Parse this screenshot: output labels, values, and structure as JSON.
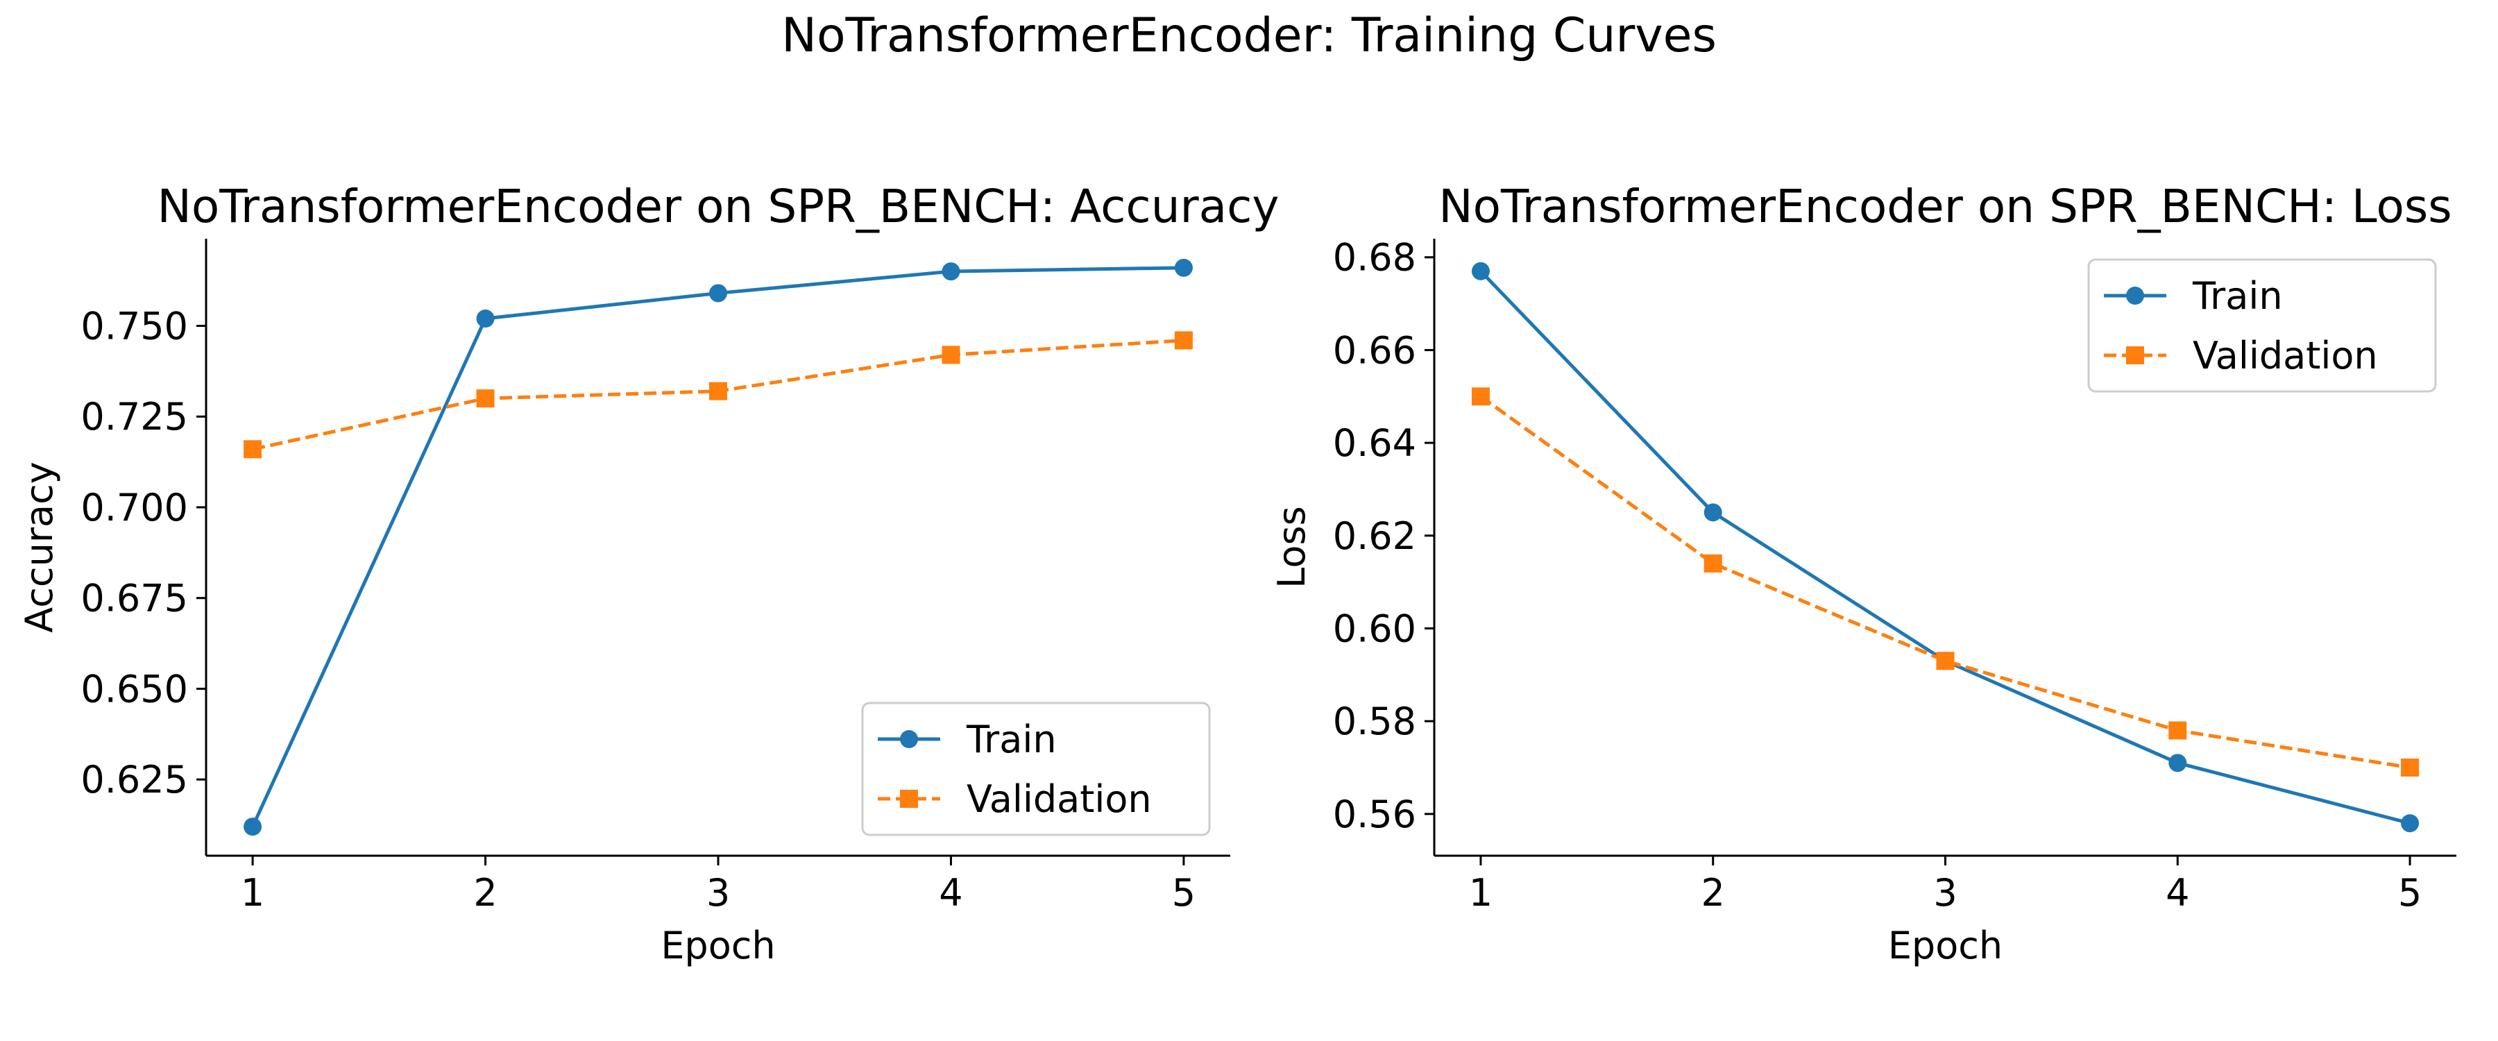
{
  "figure_title": "NoTransformerEncoder: Training Curves",
  "colors": {
    "train": "#1f77b4",
    "validation": "#ff7f0e",
    "axis": "#000000"
  },
  "chart_data": [
    {
      "type": "line",
      "title": "NoTransformerEncoder on SPR_BENCH: Accuracy",
      "xlabel": "Epoch",
      "ylabel": "Accuracy",
      "x": [
        1,
        2,
        3,
        4,
        5
      ],
      "xticks": [
        1,
        2,
        3,
        4,
        5
      ],
      "yticks": [
        0.625,
        0.65,
        0.675,
        0.7,
        0.725,
        0.75
      ],
      "ytick_decimals": 3,
      "xlim": [
        0.8,
        5.2
      ],
      "ylim": [
        0.604,
        0.774
      ],
      "grid": false,
      "legend_position": "lower right",
      "series": [
        {
          "name": "Train",
          "values": [
            0.612,
            0.752,
            0.759,
            0.765,
            0.766
          ],
          "marker": "circle",
          "dash": "solid",
          "color_key": "train"
        },
        {
          "name": "Validation",
          "values": [
            0.716,
            0.73,
            0.732,
            0.742,
            0.746
          ],
          "marker": "square",
          "dash": "dashed",
          "color_key": "validation"
        }
      ]
    },
    {
      "type": "line",
      "title": "NoTransformerEncoder on SPR_BENCH: Loss",
      "xlabel": "Epoch",
      "ylabel": "Loss",
      "x": [
        1,
        2,
        3,
        4,
        5
      ],
      "xticks": [
        1,
        2,
        3,
        4,
        5
      ],
      "yticks": [
        0.56,
        0.58,
        0.6,
        0.62,
        0.64,
        0.66,
        0.68
      ],
      "ytick_decimals": 2,
      "xlim": [
        0.8,
        5.2
      ],
      "ylim": [
        0.551,
        0.684
      ],
      "grid": false,
      "legend_position": "upper right",
      "series": [
        {
          "name": "Train",
          "values": [
            0.677,
            0.625,
            0.593,
            0.571,
            0.558
          ],
          "marker": "circle",
          "dash": "solid",
          "color_key": "train"
        },
        {
          "name": "Validation",
          "values": [
            0.65,
            0.614,
            0.593,
            0.578,
            0.57
          ],
          "marker": "square",
          "dash": "dashed",
          "color_key": "validation"
        }
      ]
    }
  ]
}
